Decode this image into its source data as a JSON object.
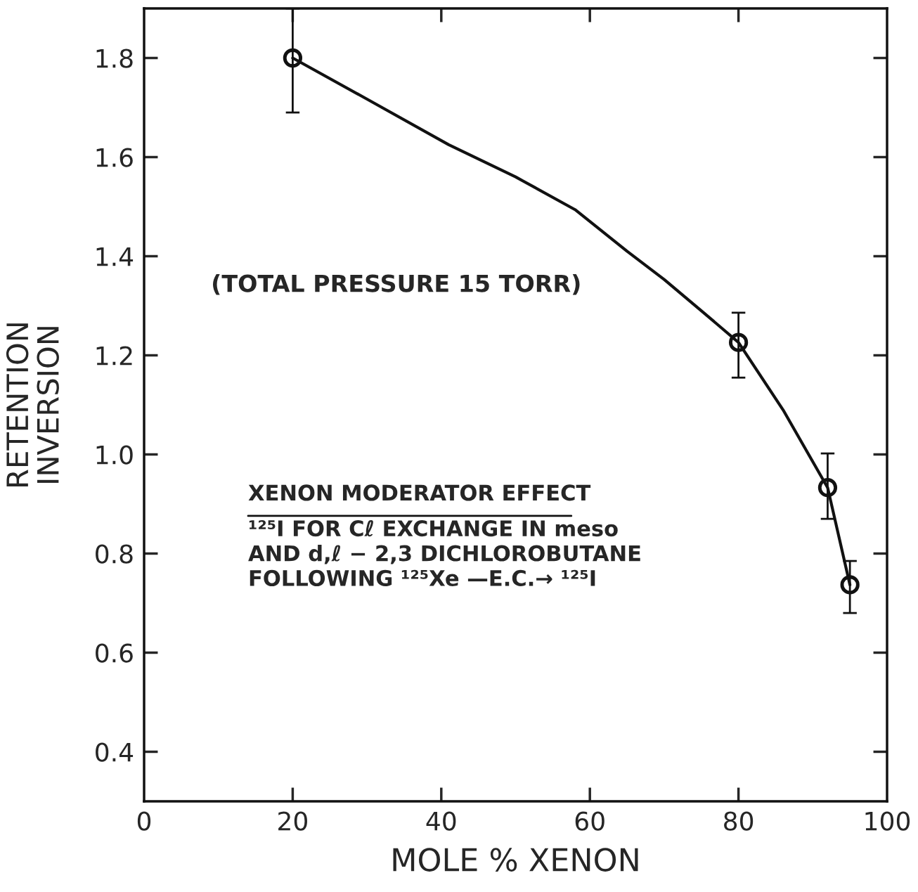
{
  "chart_data": {
    "type": "scatter",
    "xlabel": "MOLE % XENON",
    "ylabel": "RETENTION\nINVERSION",
    "xlim": [
      0,
      100
    ],
    "ylim": [
      0.3,
      1.9
    ],
    "xticks": [
      0,
      20,
      40,
      60,
      80,
      100
    ],
    "yticks": [
      0.4,
      0.6,
      0.8,
      {
        "value": 1.0,
        "label": "1.0"
      },
      1.2,
      1.4,
      1.6,
      1.8
    ],
    "grid": false,
    "series": [
      {
        "marker": "circle",
        "color": "#111111",
        "x": [
          20,
          80,
          92,
          95
        ],
        "values": [
          1.8,
          1.226,
          0.933,
          0.737
        ],
        "errors": [
          [
            1.69,
            1.9
          ],
          [
            1.155,
            1.286
          ],
          [
            0.87,
            1.002
          ],
          [
            0.68,
            0.785
          ]
        ]
      },
      {
        "type": "line",
        "color": "#111111",
        "line_style": "solid",
        "x": [
          20,
          30,
          41,
          50,
          58,
          65,
          70,
          75,
          80,
          86,
          92,
          95
        ],
        "values": [
          1.8,
          1.717,
          1.625,
          1.56,
          1.494,
          1.41,
          1.353,
          1.29,
          1.226,
          1.09,
          0.933,
          0.737
        ]
      }
    ],
    "annotations": [
      "(TOTAL PRESSURE 15 TORR)",
      "XENON MODERATOR EFFECT",
      "¹²⁵I FOR Cℓ EXCHANGE IN meso\nAND d,ℓ − 2,3 DICHLOROBUTANE\nFOLLOWING ¹²⁵Xe —E.C.→ ¹²⁵I"
    ]
  }
}
